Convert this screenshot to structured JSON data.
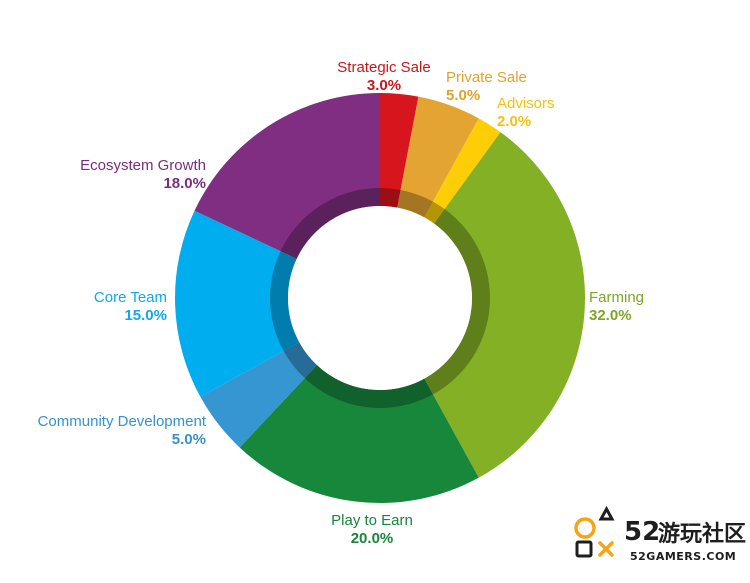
{
  "chart_data": {
    "type": "pie",
    "variant": "donut",
    "title": "",
    "slices": [
      {
        "label": "Strategic Sale",
        "value": 3.0,
        "display": "3.0%",
        "color": "#d7151c",
        "label_color": "#c8161d"
      },
      {
        "label": "Private Sale",
        "value": 5.0,
        "display": "5.0%",
        "color": "#e4a431",
        "label_color": "#e0a22c"
      },
      {
        "label": "Advisors",
        "value": 2.0,
        "display": "2.0%",
        "color": "#fdcd06",
        "label_color": "#f3c20b"
      },
      {
        "label": "Farming",
        "value": 32.0,
        "display": "32.0%",
        "color": "#84b025",
        "label_color": "#7ea523"
      },
      {
        "label": "Play to Earn",
        "value": 20.0,
        "display": "20.0%",
        "color": "#17873c",
        "label_color": "#17853b"
      },
      {
        "label": "Community Development",
        "value": 5.0,
        "display": "5.0%",
        "color": "#3596d1",
        "label_color": "#3592cc"
      },
      {
        "label": "Core Team",
        "value": 15.0,
        "display": "15.0%",
        "color": "#00adef",
        "label_color": "#10a8e6"
      },
      {
        "label": "Ecosystem Growth",
        "value": 18.0,
        "display": "18.0%",
        "color": "#7f2e81",
        "label_color": "#7a2d7c"
      }
    ],
    "start": "top",
    "direction": "clockwise",
    "legend": "none",
    "labels": "outside"
  },
  "watermark": {
    "number": "52",
    "chinese": "游玩社区",
    "url": "52GAMERS.COM",
    "colors": {
      "accent": "#f5a418",
      "dark": "#1e1e1e"
    }
  }
}
